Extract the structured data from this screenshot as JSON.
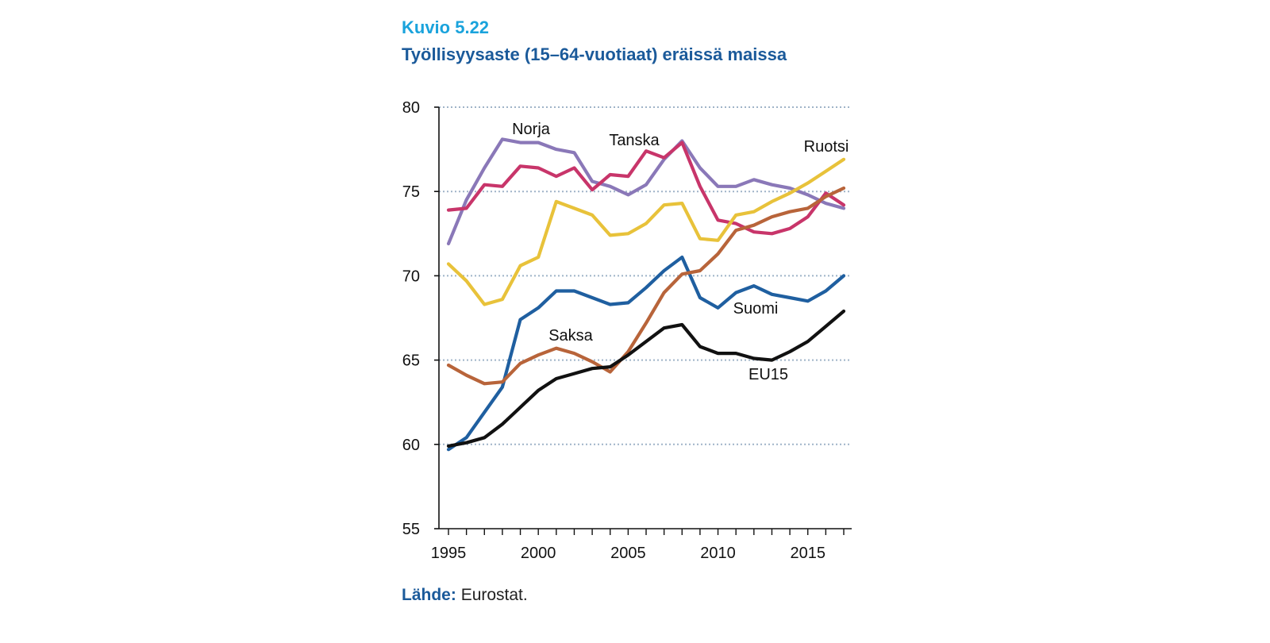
{
  "figure": {
    "number": "Kuvio 5.22",
    "title": "Työllisyysaste (15–64-vuotiaat) eräissä maissa",
    "source_label": "Lähde:",
    "source_text": "Eurostat."
  },
  "chart_data": {
    "type": "line",
    "title": "Työllisyysaste (15–64-vuotiaat) eräissä maissa",
    "xlabel": "",
    "ylabel": "",
    "xlim": [
      1995,
      2017
    ],
    "ylim": [
      55,
      80
    ],
    "x_ticks": [
      1995,
      2000,
      2005,
      2010,
      2015
    ],
    "y_ticks": [
      55,
      60,
      65,
      70,
      75,
      80
    ],
    "grid": "horizontal dotted",
    "x": [
      1995,
      1996,
      1997,
      1998,
      1999,
      2000,
      2001,
      2002,
      2003,
      2004,
      2005,
      2006,
      2007,
      2008,
      2009,
      2010,
      2011,
      2012,
      2013,
      2014,
      2015,
      2016,
      2017
    ],
    "series": [
      {
        "name": "Norja",
        "color": "#8a78b8",
        "values": [
          71.9,
          74.5,
          76.4,
          78.1,
          77.9,
          77.9,
          77.5,
          77.3,
          75.6,
          75.3,
          74.8,
          75.4,
          76.9,
          78.0,
          76.4,
          75.3,
          75.3,
          75.7,
          75.4,
          75.2,
          74.8,
          74.3,
          74.0
        ]
      },
      {
        "name": "Tanska",
        "color": "#c8356a",
        "values": [
          73.9,
          74.0,
          75.4,
          75.3,
          76.5,
          76.4,
          75.9,
          76.4,
          75.1,
          76.0,
          75.9,
          77.4,
          77.0,
          77.9,
          75.3,
          73.3,
          73.1,
          72.6,
          72.5,
          72.8,
          73.5,
          74.9,
          74.2
        ]
      },
      {
        "name": "Ruotsi",
        "color": "#e8c23a",
        "values": [
          70.7,
          69.7,
          68.3,
          68.6,
          70.6,
          71.1,
          74.4,
          74.0,
          73.6,
          72.4,
          72.5,
          73.1,
          74.2,
          74.3,
          72.2,
          72.1,
          73.6,
          73.8,
          74.4,
          74.9,
          75.5,
          76.2,
          76.9
        ]
      },
      {
        "name": "Suomi",
        "color": "#1f5fa0",
        "values": [
          59.7,
          60.4,
          61.9,
          63.4,
          67.4,
          68.1,
          69.1,
          69.1,
          68.7,
          68.3,
          68.4,
          69.3,
          70.3,
          71.1,
          68.7,
          68.1,
          69.0,
          69.4,
          68.9,
          68.7,
          68.5,
          69.1,
          70.0
        ]
      },
      {
        "name": "Saksa",
        "color": "#b8643a",
        "values": [
          64.7,
          64.1,
          63.6,
          63.7,
          64.8,
          65.3,
          65.7,
          65.4,
          64.9,
          64.3,
          65.5,
          67.2,
          69.0,
          70.1,
          70.3,
          71.3,
          72.7,
          73.0,
          73.5,
          73.8,
          74.0,
          74.7,
          75.2
        ]
      },
      {
        "name": "EU15",
        "color": "#111111",
        "values": [
          59.9,
          60.1,
          60.4,
          61.2,
          62.2,
          63.2,
          63.9,
          64.2,
          64.5,
          64.6,
          65.3,
          66.1,
          66.9,
          67.1,
          65.8,
          65.4,
          65.4,
          65.1,
          65.0,
          65.5,
          66.1,
          67.0,
          67.9
        ]
      }
    ],
    "labels": [
      {
        "text": "Norja",
        "series": "Norja"
      },
      {
        "text": "Tanska",
        "series": "Tanska"
      },
      {
        "text": "Ruotsi",
        "series": "Ruotsi"
      },
      {
        "text": "Suomi",
        "series": "Suomi"
      },
      {
        "text": "Saksa",
        "series": "Saksa"
      },
      {
        "text": "EU15",
        "series": "EU15"
      }
    ]
  }
}
